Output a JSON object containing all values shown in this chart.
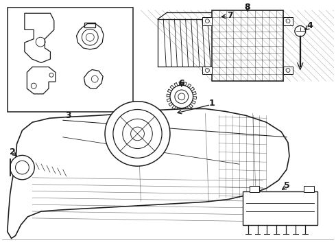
{
  "bg_color": "#ffffff",
  "line_color": "#1a1a1a",
  "fig_width": 4.9,
  "fig_height": 3.6,
  "dpi": 100,
  "lw": 0.9
}
